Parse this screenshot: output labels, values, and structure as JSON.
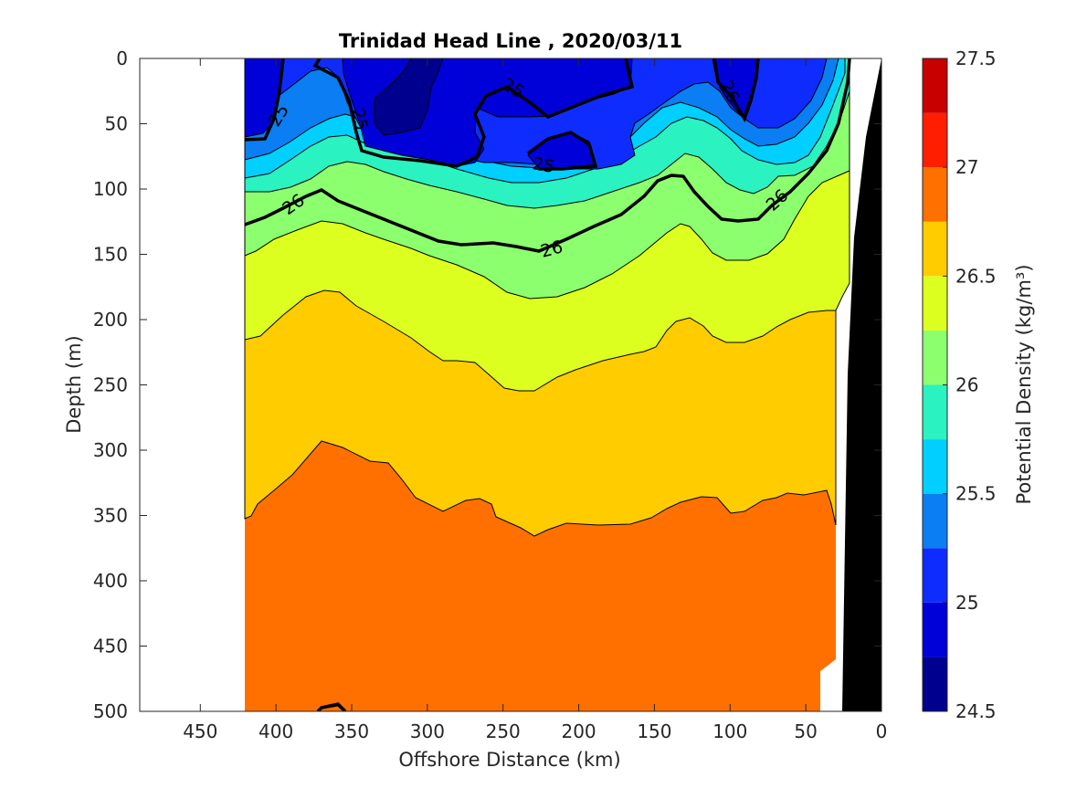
{
  "chart_data": {
    "type": "contour",
    "title": "Trinidad Head Line , 2020/03/11",
    "xlabel": "Offshore Distance (km)",
    "ylabel": "Depth (m)",
    "xlim": [
      490,
      0
    ],
    "ylim": [
      0,
      500
    ],
    "y_reversed": true,
    "x_ticks": [
      "450",
      "400",
      "350",
      "300",
      "250",
      "200",
      "150",
      "100",
      "50",
      "0"
    ],
    "y_ticks": [
      "0",
      "50",
      "100",
      "150",
      "200",
      "250",
      "300",
      "350",
      "400",
      "450",
      "500"
    ],
    "colorbar": {
      "label": "Potential Density (kg/m³)",
      "min": 24.5,
      "max": 27.5,
      "ticks": [
        "24.5",
        "25",
        "25.5",
        "26",
        "26.5",
        "27",
        "27.5"
      ],
      "levels": [
        24.5,
        24.75,
        25,
        25.25,
        25.5,
        25.75,
        26,
        26.25,
        26.5,
        26.75,
        27,
        27.25,
        27.5
      ],
      "colors": [
        "#00008F",
        "#0000D9",
        "#0F2CFF",
        "#0A7EF2",
        "#00CFFF",
        "#2AF2C0",
        "#8CFF6E",
        "#DDFF1F",
        "#FFCC00",
        "#FF7000",
        "#FF1F00",
        "#C80000"
      ]
    },
    "labeled_contours": [
      "25",
      "25",
      "25",
      "25",
      "26",
      "26",
      "26"
    ],
    "data_extent_km": [
      0,
      420
    ]
  }
}
